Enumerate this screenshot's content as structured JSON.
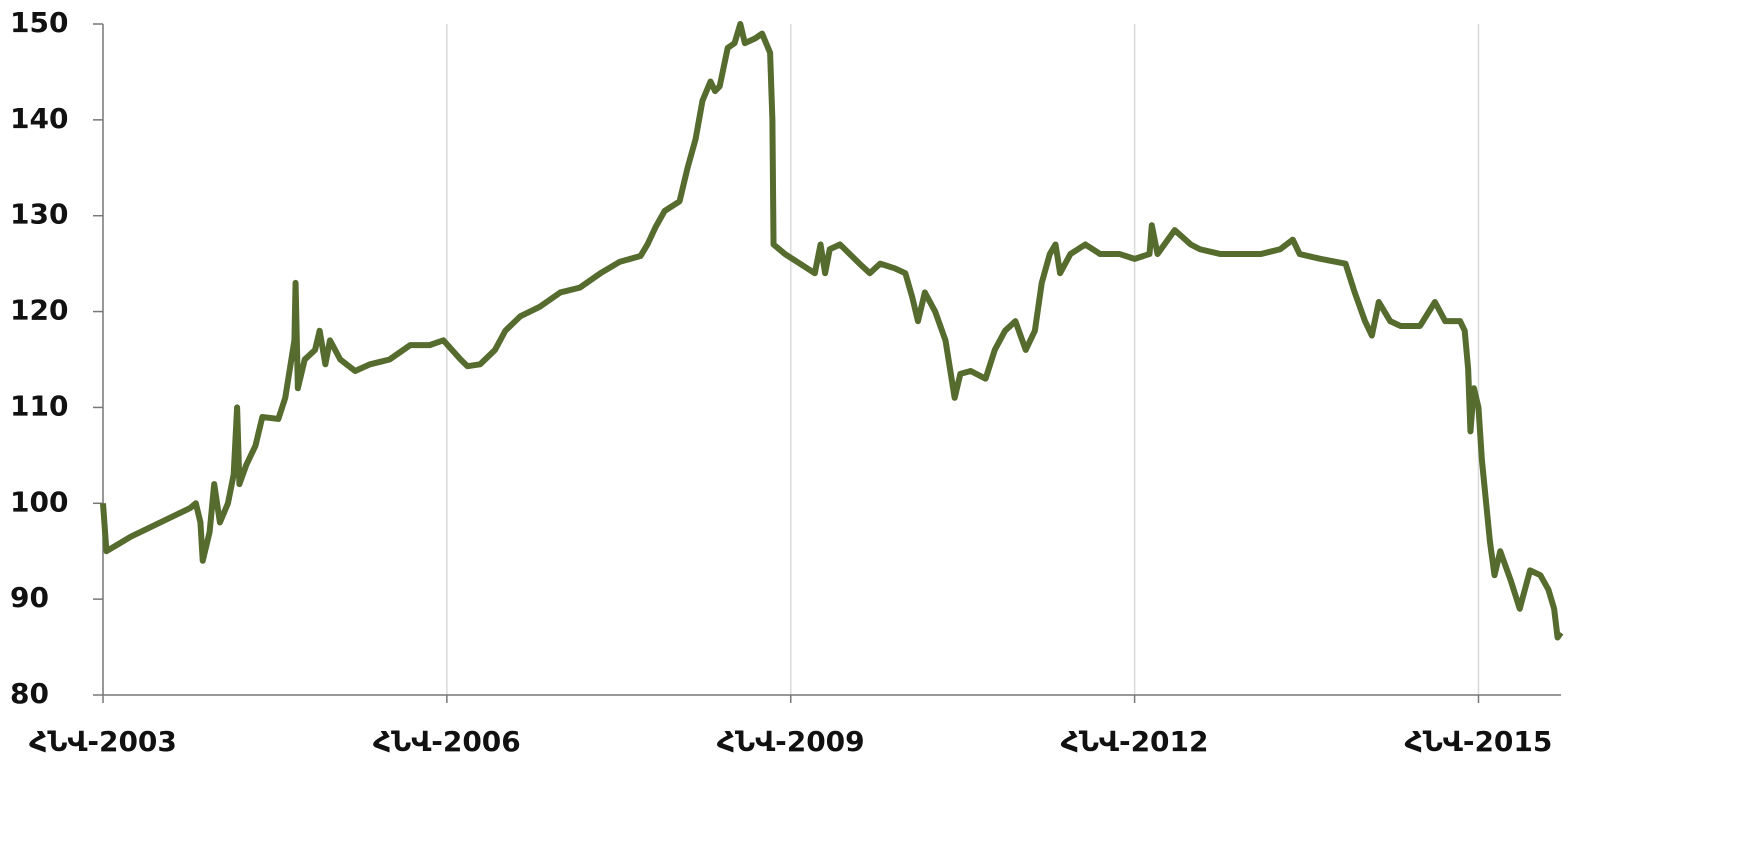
{
  "chart_data": {
    "type": "line",
    "x": [
      2003.0,
      2003.03,
      2003.24,
      2003.5,
      2003.76,
      2003.81,
      2003.85,
      2003.87,
      2003.93,
      2003.97,
      2004.02,
      2004.09,
      2004.14,
      2004.17,
      2004.19,
      2004.25,
      2004.33,
      2004.39,
      2004.53,
      2004.59,
      2004.63,
      2004.67,
      2004.68,
      2004.7,
      2004.76,
      2004.85,
      2004.89,
      2004.94,
      2004.98,
      2005.07,
      2005.2,
      2005.33,
      2005.5,
      2005.68,
      2005.85,
      2005.97,
      2006.12,
      2006.18,
      2006.29,
      2006.42,
      2006.51,
      2006.64,
      2006.81,
      2006.99,
      2007.16,
      2007.34,
      2007.51,
      2007.69,
      2007.75,
      2007.82,
      2007.9,
      2008.03,
      2008.1,
      2008.17,
      2008.23,
      2008.3,
      2008.34,
      2008.38,
      2008.45,
      2008.51,
      2008.56,
      2008.6,
      2008.69,
      2008.75,
      2008.82,
      2008.84,
      2008.85,
      2008.95,
      2009.08,
      2009.21,
      2009.26,
      2009.3,
      2009.34,
      2009.43,
      2009.6,
      2009.69,
      2009.78,
      2009.91,
      2010.0,
      2010.06,
      2010.11,
      2010.17,
      2010.26,
      2010.35,
      2010.43,
      2010.48,
      2010.57,
      2010.7,
      2010.78,
      2010.87,
      2010.96,
      2011.05,
      2011.13,
      2011.19,
      2011.26,
      2011.31,
      2011.35,
      2011.44,
      2011.57,
      2011.7,
      2011.87,
      2012.0,
      2012.13,
      2012.15,
      2012.2,
      2012.35,
      2012.49,
      2012.57,
      2012.75,
      2012.92,
      2013.1,
      2013.27,
      2013.38,
      2013.44,
      2013.62,
      2013.84,
      2013.92,
      2014.01,
      2014.07,
      2014.13,
      2014.23,
      2014.32,
      2014.49,
      2014.62,
      2014.71,
      2014.84,
      2014.88,
      2014.91,
      2014.93,
      2014.96,
      2015.0,
      2015.03,
      2015.1,
      2015.14,
      2015.19,
      2015.28,
      2015.36,
      2015.45,
      2015.54,
      2015.61,
      2015.66,
      2015.69,
      2015.72
    ],
    "series": [
      {
        "color": "#566b2e",
        "values": [
          100,
          95,
          96.5,
          98,
          99.5,
          100,
          98,
          94,
          97,
          102,
          98,
          100,
          103,
          110,
          102,
          104,
          106,
          109,
          108.8,
          111,
          114,
          117,
          123,
          112,
          115,
          116,
          118,
          114.5,
          117,
          115,
          113.8,
          114.5,
          115,
          116.5,
          116.5,
          117,
          115,
          114.3,
          114.5,
          116,
          118,
          119.5,
          120.5,
          122,
          122.5,
          124,
          125.2,
          125.8,
          127,
          128.8,
          130.5,
          131.5,
          135,
          138,
          142,
          144,
          143,
          143.5,
          147.5,
          148,
          150,
          148,
          148.5,
          149,
          147,
          140,
          127,
          126,
          125,
          124,
          127,
          124,
          126.5,
          127,
          125,
          124,
          125,
          124.5,
          124,
          121.5,
          119,
          122,
          120,
          117,
          111,
          113.5,
          113.8,
          113,
          116,
          118,
          119,
          116,
          118,
          123,
          126,
          127,
          124,
          126,
          127,
          126,
          126,
          125.5,
          126,
          129,
          126,
          128.5,
          127,
          126.5,
          126,
          126,
          126,
          126.5,
          127.5,
          126,
          125.5,
          125,
          122,
          119,
          117.5,
          121,
          119,
          118.5,
          118.5,
          121,
          119,
          119,
          118,
          114,
          107.5,
          112,
          110,
          104.5,
          96,
          92.5,
          95,
          92,
          89,
          93,
          92.5,
          91,
          89,
          86,
          86.5
        ]
      }
    ],
    "xlim": [
      2003,
      2015.72
    ],
    "xticks": [
      {
        "value": 2003,
        "label": "ՀՆՎ-2003"
      },
      {
        "value": 2006,
        "label": "ՀՆՎ-2006"
      },
      {
        "value": 2009,
        "label": "ՀՆՎ-2009"
      },
      {
        "value": 2012,
        "label": "ՀՆՎ-2012"
      },
      {
        "value": 2015,
        "label": "ՀՆՎ-2015"
      }
    ],
    "ylim": [
      80,
      150
    ],
    "yticks": [
      80,
      90,
      100,
      110,
      120,
      130,
      140,
      150
    ],
    "grid": true
  }
}
